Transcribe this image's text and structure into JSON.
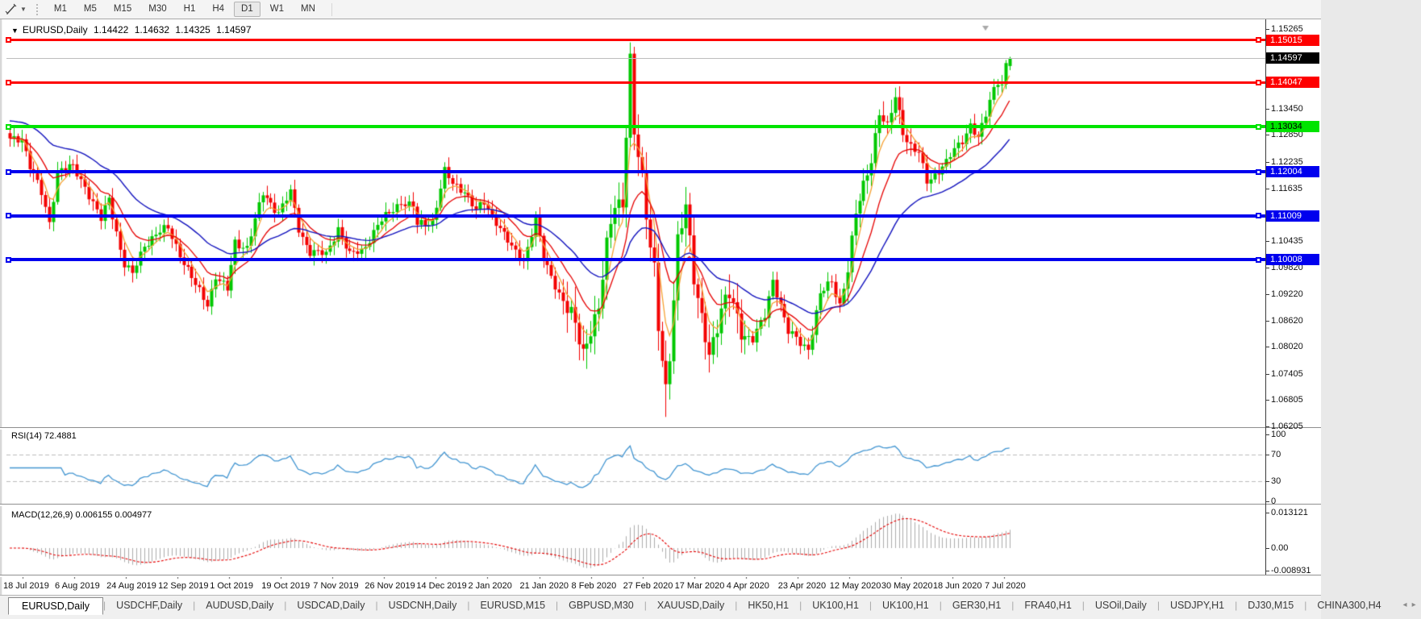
{
  "toolbar": {
    "cursor_tool": "crosshair-tool",
    "timeframes": [
      "M1",
      "M5",
      "M15",
      "M30",
      "H1",
      "H4",
      "D1",
      "W1",
      "MN"
    ],
    "selected_timeframe": "D1"
  },
  "chart_header": {
    "dropdown_glyph": "▼",
    "symbol_period": "EURUSD,Daily",
    "open": "1.14422",
    "high": "1.14632",
    "low": "1.14325",
    "close": "1.14597"
  },
  "price_axis": {
    "plot_max": 1.15265,
    "plot_min": 1.06205,
    "ticks": [
      "1.15265",
      "1.13450",
      "1.12850",
      "1.12235",
      "1.11635",
      "1.10435",
      "1.09820",
      "1.09220",
      "1.08620",
      "1.08020",
      "1.07405",
      "1.06805",
      "1.06205"
    ]
  },
  "current_price": {
    "label": "1.14597",
    "value": 1.14597,
    "line_color": "#bdbdbd",
    "badge_bg": "#000000",
    "badge_fg": "#ffffff"
  },
  "hlines": [
    {
      "label": "1.15015",
      "value": 1.15015,
      "color": "#fe0000",
      "thickness": 3,
      "text": "#ffffff"
    },
    {
      "label": "1.14047",
      "value": 1.14047,
      "color": "#fe0000",
      "thickness": 3,
      "text": "#ffffff"
    },
    {
      "label": "1.13034",
      "value": 1.13034,
      "color": "#00e400",
      "thickness": 4,
      "text": "#000000"
    },
    {
      "label": "1.12004",
      "value": 1.12004,
      "color": "#0000ee",
      "thickness": 4,
      "text": "#ffffff"
    },
    {
      "label": "1.11009",
      "value": 1.11009,
      "color": "#0000ee",
      "thickness": 4,
      "text": "#ffffff"
    },
    {
      "label": "1.10008",
      "value": 1.10008,
      "color": "#0000ee",
      "thickness": 4,
      "text": "#ffffff"
    }
  ],
  "indicators": {
    "rsi": {
      "label": "RSI(14) 72.4881",
      "period": 14,
      "current": "72.4881",
      "axis_ticks": [
        {
          "label": "100",
          "value": 100
        },
        {
          "label": "70",
          "value": 70
        },
        {
          "label": "30",
          "value": 30
        },
        {
          "label": "0",
          "value": 0
        }
      ],
      "levels": [
        70,
        30
      ],
      "range": [
        0,
        100
      ],
      "line_color": "#4396d2",
      "level_color": "#bcbcbc"
    },
    "macd": {
      "label": "MACD(12,26,9) 0.006155 0.004977",
      "params": [
        12,
        26,
        9
      ],
      "main_current": "0.006155",
      "signal_current": "0.004977",
      "axis_ticks": [
        {
          "label": "0.013121",
          "value": 0.013121
        },
        {
          "label": "0.00",
          "value": 0
        },
        {
          "label": "-0.008931",
          "value": -0.008931
        }
      ],
      "max": 0.013121,
      "min": -0.008931,
      "histogram_color": "#adadad",
      "signal_color": "#e60000"
    }
  },
  "date_axis": {
    "labels": [
      "18 Jul 2019",
      "6 Aug 2019",
      "24 Aug 2019",
      "12 Sep 2019",
      "1 Oct 2019",
      "19 Oct 2019",
      "7 Nov 2019",
      "26 Nov 2019",
      "14 Dec 2019",
      "2 Jan 2020",
      "21 Jan 2020",
      "8 Feb 2020",
      "27 Feb 2020",
      "17 Mar 2020",
      "4 Apr 2020",
      "23 Apr 2020",
      "12 May 2020",
      "30 May 2020",
      "18 Jun 2020",
      "7 Jul 2020"
    ]
  },
  "tabs": {
    "items": [
      "EURUSD,Daily",
      "USDCHF,Daily",
      "AUDUSD,Daily",
      "USDCAD,Daily",
      "USDCNH,Daily",
      "EURUSD,M15",
      "GBPUSD,M30",
      "XAUUSD,Daily",
      "HK50,H1",
      "UK100,H1",
      "UK100,H1",
      "GER30,H1",
      "FRA40,H1",
      "USOil,Daily",
      "USDJPY,H1",
      "DJ30,M15",
      "CHINA300,H4"
    ],
    "active": "EURUSD,Daily",
    "nav_left": "◂",
    "nav_right": "▸"
  },
  "colors": {
    "bull": "#00c800",
    "bear": "#f40000",
    "ma_fast": "#f6a133",
    "ma_mid": "#e60000",
    "ma_slow": "#1212be"
  },
  "chart_data": {
    "type": "candlestick",
    "symbol": "EURUSD",
    "timeframe": "Daily",
    "bars": 254,
    "x_range": [
      "18 Jul 2019",
      "21 Jul 2020"
    ],
    "price_range": [
      1.06205,
      1.15265
    ],
    "close_anchors": [
      [
        0,
        1.1272
      ],
      [
        3,
        1.128
      ],
      [
        5,
        1.1215
      ],
      [
        8,
        1.115
      ],
      [
        10,
        1.1085
      ],
      [
        12,
        1.1205
      ],
      [
        16,
        1.121
      ],
      [
        19,
        1.117
      ],
      [
        23,
        1.109
      ],
      [
        25,
        1.114
      ],
      [
        29,
        1.099
      ],
      [
        31,
        1.0965
      ],
      [
        34,
        1.1035
      ],
      [
        37,
        1.106
      ],
      [
        40,
        1.107
      ],
      [
        43,
        1.1015
      ],
      [
        47,
        1.094
      ],
      [
        50,
        1.09
      ],
      [
        52,
        1.0965
      ],
      [
        55,
        1.093
      ],
      [
        57,
        1.104
      ],
      [
        60,
        1.103
      ],
      [
        64,
        1.115
      ],
      [
        68,
        1.111
      ],
      [
        71,
        1.1152
      ],
      [
        73,
        1.107
      ],
      [
        76,
        1.102
      ],
      [
        80,
        1.101
      ],
      [
        83,
        1.1075
      ],
      [
        86,
        1.101
      ],
      [
        89,
        1.102
      ],
      [
        93,
        1.108
      ],
      [
        96,
        1.1105
      ],
      [
        99,
        1.1135
      ],
      [
        102,
        1.112
      ],
      [
        103,
        1.1078
      ],
      [
        107,
        1.109
      ],
      [
        110,
        1.12
      ],
      [
        112,
        1.1172
      ],
      [
        115,
        1.116
      ],
      [
        118,
        1.111
      ],
      [
        120,
        1.113
      ],
      [
        123,
        1.109
      ],
      [
        127,
        1.1025
      ],
      [
        130,
        1.1
      ],
      [
        133,
        1.1093
      ],
      [
        135,
        1.1
      ],
      [
        138,
        1.0945
      ],
      [
        142,
        1.087
      ],
      [
        145,
        1.079
      ],
      [
        147,
        1.085
      ],
      [
        149,
        1.0885
      ],
      [
        151,
        1.1026
      ],
      [
        153,
        1.1135
      ],
      [
        155,
        1.1135
      ],
      [
        157,
        1.145
      ],
      [
        158,
        1.128
      ],
      [
        160,
        1.1185
      ],
      [
        161,
        1.1105
      ],
      [
        163,
        1.099
      ],
      [
        164,
        1.085
      ],
      [
        166,
        1.069
      ],
      [
        167,
        1.0768
      ],
      [
        169,
        1.105
      ],
      [
        171,
        1.114
      ],
      [
        173,
        1.095
      ],
      [
        175,
        1.0855
      ],
      [
        177,
        1.079
      ],
      [
        180,
        1.089
      ],
      [
        182,
        1.0915
      ],
      [
        185,
        1.084
      ],
      [
        188,
        1.082
      ],
      [
        191,
        1.087
      ],
      [
        193,
        1.0955
      ],
      [
        195,
        1.09
      ],
      [
        197,
        1.0835
      ],
      [
        200,
        1.081
      ],
      [
        202,
        1.08
      ],
      [
        205,
        1.092
      ],
      [
        208,
        1.095
      ],
      [
        210,
        1.09
      ],
      [
        212,
        1.098
      ],
      [
        214,
        1.11
      ],
      [
        216,
        1.117
      ],
      [
        218,
        1.1235
      ],
      [
        220,
        1.1335
      ],
      [
        222,
        1.1295
      ],
      [
        224,
        1.1375
      ],
      [
        226,
        1.13
      ],
      [
        228,
        1.1255
      ],
      [
        230,
        1.124
      ],
      [
        232,
        1.118
      ],
      [
        235,
        1.1205
      ],
      [
        237,
        1.122
      ],
      [
        239,
        1.125
      ],
      [
        241,
        1.1275
      ],
      [
        243,
        1.131
      ],
      [
        245,
        1.1274
      ],
      [
        247,
        1.133
      ],
      [
        249,
        1.1395
      ],
      [
        250,
        1.1412
      ],
      [
        251,
        1.14
      ],
      [
        252,
        1.1445
      ],
      [
        253,
        1.14597
      ]
    ],
    "overrides": {
      "157": {
        "h": 1.1496
      },
      "166": {
        "l": 1.0642
      },
      "253": {
        "o": 1.14422,
        "h": 1.14632,
        "l": 1.14325,
        "c": 1.14597
      }
    },
    "volatility_zones": [
      [
        140,
        186,
        2.1
      ],
      [
        212,
        228,
        1.45
      ]
    ],
    "ma_periods": {
      "fast": 5,
      "mid": 13,
      "slow": 34
    }
  }
}
